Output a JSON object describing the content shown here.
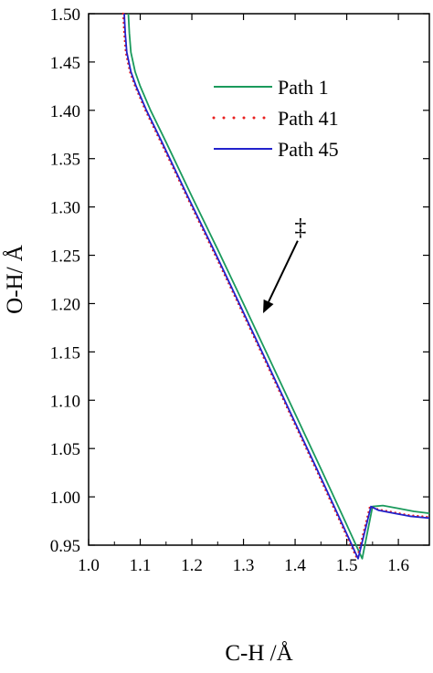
{
  "chart_data": {
    "type": "line",
    "title": "",
    "xlabel": "C-H /Å",
    "ylabel": "O-H/ Å",
    "xlim": [
      1.0,
      1.66
    ],
    "ylim": [
      0.95,
      1.5
    ],
    "xticks": [
      1.0,
      1.1,
      1.2,
      1.3,
      1.4,
      1.5,
      1.6
    ],
    "xtick_labels": [
      "1.0",
      "1.1",
      "1.2",
      "1.3",
      "1.4",
      "1.5",
      "1.6"
    ],
    "yticks": [
      0.95,
      1.0,
      1.05,
      1.1,
      1.15,
      1.2,
      1.25,
      1.3,
      1.35,
      1.4,
      1.45,
      1.5
    ],
    "ytick_labels": [
      "0.95",
      "1.00",
      "1.05",
      "1.10",
      "1.15",
      "1.20",
      "1.25",
      "1.30",
      "1.35",
      "1.40",
      "1.45",
      "1.50"
    ],
    "grid": false,
    "legend_position": "top-right",
    "series": [
      {
        "name": "Path 1",
        "color": "#1a9a5c",
        "style": "solid",
        "x": [
          1.077,
          1.079,
          1.082,
          1.09,
          1.1,
          1.12,
          1.15,
          1.2,
          1.25,
          1.3,
          1.35,
          1.4,
          1.45,
          1.5,
          1.53,
          1.55,
          1.57,
          1.6,
          1.63,
          1.66
        ],
        "y": [
          1.5,
          1.48,
          1.46,
          1.44,
          1.425,
          1.4,
          1.367,
          1.311,
          1.256,
          1.2,
          1.143,
          1.086,
          1.029,
          0.971,
          0.936,
          0.99,
          0.991,
          0.988,
          0.985,
          0.983
        ]
      },
      {
        "name": "Path 41",
        "color": "#e82020",
        "style": "dotted",
        "x": [
          1.067,
          1.069,
          1.072,
          1.08,
          1.09,
          1.11,
          1.14,
          1.19,
          1.24,
          1.29,
          1.34,
          1.39,
          1.44,
          1.49,
          1.52,
          1.545,
          1.56,
          1.59,
          1.62,
          1.66
        ],
        "y": [
          1.5,
          1.48,
          1.46,
          1.44,
          1.425,
          1.4,
          1.367,
          1.311,
          1.256,
          1.2,
          1.143,
          1.086,
          1.029,
          0.971,
          0.936,
          0.99,
          0.987,
          0.984,
          0.981,
          0.979
        ]
      },
      {
        "name": "Path 45",
        "color": "#2222cc",
        "style": "solid",
        "x": [
          1.069,
          1.071,
          1.074,
          1.082,
          1.092,
          1.112,
          1.142,
          1.192,
          1.242,
          1.292,
          1.342,
          1.392,
          1.442,
          1.492,
          1.522,
          1.547,
          1.562,
          1.592,
          1.622,
          1.66
        ],
        "y": [
          1.5,
          1.48,
          1.46,
          1.44,
          1.425,
          1.4,
          1.367,
          1.311,
          1.256,
          1.2,
          1.143,
          1.086,
          1.029,
          0.971,
          0.936,
          0.99,
          0.986,
          0.983,
          0.98,
          0.978
        ]
      }
    ],
    "annotation": {
      "text": "‡",
      "arrow_to": [
        1.338,
        1.19
      ],
      "arrow_from": [
        1.405,
        1.265
      ]
    }
  }
}
